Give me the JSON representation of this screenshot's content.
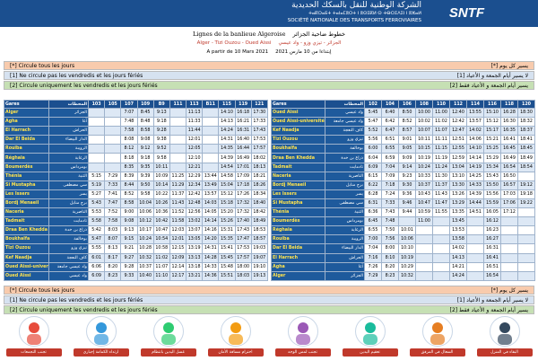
{
  "header": {
    "logo": "SNTF",
    "title_ar": "الشركة الوطنية للنقل بالسكك الحديدية",
    "title_tifinagh": "ⵜⴰⴽⵔⴰⴹⵜ ⵜⴰⵏⴰⵎⵓⵔⵜ ⵏ ⵓⵙⵉⴽⵍ ⵙ ⵜⴱⵔⵉⴷⵉⵏ ⵏ ⵓⵣⴰⵍ",
    "title_fr": "SOCIÉTÉ NATIONALE DES TRANSPORTS FERROVIAIRES"
  },
  "intro": {
    "line": "Lignes de la banlieue Algeroise",
    "line_ar": "خطوط ضاحية الجزائر",
    "route": "Alger - Tizi Ouzou - Oued Aissi",
    "route_ar": "الجزائر - تيزي وزو - واد عيسي",
    "date": "A partir de 10 Mars 2021",
    "date_ar": "إبتداءا من 10 مارس 2021"
  },
  "legend": [
    {
      "fr": "[*]  Circule tous les jours",
      "ar": "يسير كل يوم  [*]"
    },
    {
      "fr": "[1]  Ne circule pas les vendredis et les jours fériés",
      "ar": "لا يسير أيام الجمعة و الأعياد  [1]"
    },
    {
      "fr": "[2]  Circule uniquement les vendredis et les jours fériés",
      "ar": "يسير أيام الجمعة و الأعياد فقط  [2]"
    }
  ],
  "tables": [
    {
      "station_header": "Gares",
      "station_header_ar": "المحطات",
      "trains": [
        "103",
        "105",
        "107",
        "109",
        "B9",
        "111",
        "113",
        "B11",
        "115",
        "119",
        "121"
      ],
      "rows": [
        {
          "station": "Alger",
          "station_ar": "الجزائر",
          "times": [
            null,
            null,
            "7:07",
            "8:45",
            "9:13",
            null,
            "11:13",
            null,
            "14:10",
            "16:18",
            "17:30"
          ]
        },
        {
          "station": "Agha",
          "station_ar": "آغا",
          "times": [
            null,
            null,
            "7:48",
            "8:48",
            "9:18",
            null,
            "11:33",
            null,
            "14:13",
            "16:21",
            "17:33"
          ]
        },
        {
          "station": "El Harrach",
          "station_ar": "الحراش",
          "times": [
            null,
            null,
            "7:58",
            "8:58",
            "9:28",
            null,
            "11:44",
            null,
            "14:24",
            "16:31",
            "17:43"
          ]
        },
        {
          "station": "Dar El Beida",
          "station_ar": "الدار البيضاء",
          "times": [
            null,
            null,
            "8:08",
            "9:08",
            "9:38",
            null,
            "12:01",
            null,
            "14:31",
            "16:40",
            "17:53"
          ]
        },
        {
          "station": "Rouiba",
          "station_ar": "الرويبة",
          "times": [
            null,
            null,
            "8:12",
            "9:12",
            "9:52",
            null,
            "12:05",
            null,
            "14:35",
            "16:44",
            "17:57"
          ]
        },
        {
          "station": "Réghaia",
          "station_ar": "الرغاية",
          "times": [
            null,
            null,
            "8:18",
            "9:18",
            "9:58",
            null,
            "12:10",
            null,
            "14:39",
            "16:49",
            "18:02"
          ]
        },
        {
          "station": "Boumerdès",
          "station_ar": "بومرداس",
          "times": [
            null,
            null,
            "8:35",
            "9:35",
            "10:11",
            null,
            "12:21",
            null,
            "14:54",
            "17:01",
            "18:13"
          ]
        },
        {
          "station": "Thénia",
          "station_ar": "الثنية",
          "times": [
            "5:15",
            "7:29",
            "8:39",
            "9:39",
            "10:09",
            "11:25",
            "12:29",
            "13:44",
            "14:58",
            "17:09",
            "18:21"
          ]
        },
        {
          "station": "Si Mustapha",
          "station_ar": "سي مصطفى",
          "times": [
            "5:19",
            "7:33",
            "8:44",
            "9:50",
            "10:14",
            "11:29",
            "12:34",
            "13:49",
            "15:04",
            "17:18",
            "18:26"
          ]
        },
        {
          "station": "Les Issers",
          "station_ar": "يسر",
          "times": [
            "5:27",
            "7:41",
            "8:52",
            "9:58",
            "10:22",
            "11:37",
            "12:42",
            "13:57",
            "15:12",
            "17:26",
            "18:34"
          ]
        },
        {
          "station": "Bordj Menaeil",
          "station_ar": "برج منايل",
          "times": [
            "5:43",
            "7:47",
            "8:58",
            "10:04",
            "10:26",
            "11:43",
            "12:48",
            "14:03",
            "15:18",
            "17:32",
            "18:40"
          ]
        },
        {
          "station": "Naceria",
          "station_ar": "الناصرية",
          "times": [
            "5:53",
            "7:52",
            "9:00",
            "10:06",
            "10:36",
            "11:52",
            "12:56",
            "14:05",
            "15:20",
            "17:32",
            "18:42"
          ]
        },
        {
          "station": "Tadmait",
          "station_ar": "تادمايت",
          "times": [
            "5:58",
            "7:58",
            "9:08",
            "10:12",
            "10:42",
            "11:58",
            "13:02",
            "14:14",
            "15:26",
            "17:40",
            "18:49"
          ]
        },
        {
          "station": "Draa Ben Khedda",
          "station_ar": "ذراع بن خدة",
          "times": [
            "5:42",
            "8:03",
            "9:13",
            "10:17",
            "10:47",
            "12:03",
            "13:07",
            "14:16",
            "15:31",
            "17:43",
            "18:53"
          ]
        },
        {
          "station": "Boukhalfa",
          "station_ar": "بوخالفة",
          "times": [
            "5:47",
            "8:07",
            "9:15",
            "10:24",
            "10:54",
            "12:01",
            "13:05",
            "14:20",
            "15:35",
            "17:47",
            "18:57"
          ]
        },
        {
          "station": "Tizi Ouzou",
          "station_ar": "تيزي وزو",
          "times": [
            "5:55",
            "8:13",
            "9:21",
            "10:28",
            "10:58",
            "12:15",
            "13:19",
            "14:31",
            "15:41",
            "17:53",
            "19:03"
          ]
        },
        {
          "station": "Kef Naadja",
          "station_ar": "كاف النعجة",
          "times": [
            "6:01",
            "8:17",
            "9:27",
            "10:32",
            "11:02",
            "12:09",
            "13:13",
            "14:28",
            "15:45",
            "17:57",
            "19:07"
          ]
        },
        {
          "station": "Oued Aissi-université",
          "station_ar": "واد عيسي جامعة",
          "times": [
            "6:06",
            "8:20",
            "9:28",
            "10:37",
            "11:07",
            "12:14",
            "13:18",
            "14:33",
            "15:48",
            "18:00",
            "19:10"
          ]
        },
        {
          "station": "Oued Aissi",
          "station_ar": "واد عيسي",
          "times": [
            "6:09",
            "8:23",
            "9:33",
            "10:40",
            "11:10",
            "12:17",
            "13:21",
            "14:36",
            "15:51",
            "18:03",
            "19:13"
          ]
        }
      ]
    },
    {
      "station_header": "Gares",
      "station_header_ar": "المحطات",
      "trains": [
        "102",
        "104",
        "106",
        "108",
        "110",
        "112",
        "114",
        "116",
        "118",
        "120"
      ],
      "rows": [
        {
          "station": "Oued Aissi",
          "station_ar": "واد عيسي",
          "times": [
            "5:45",
            "6:40",
            "8:50",
            "10:00",
            "11:00",
            "12:40",
            "13:55",
            "15:10",
            "16:28",
            "18:30"
          ]
        },
        {
          "station": "Oued Aissi-université",
          "station_ar": "واد عيسي جامعة",
          "times": [
            "5:47",
            "6:42",
            "8:52",
            "10:02",
            "11:02",
            "12:42",
            "13:57",
            "15:12",
            "16:30",
            "18:32"
          ]
        },
        {
          "station": "Kef Naadja",
          "station_ar": "كاف النعجة",
          "times": [
            "5:52",
            "6:47",
            "8:57",
            "10:07",
            "11:07",
            "12:47",
            "14:02",
            "15:17",
            "16:35",
            "18:37"
          ]
        },
        {
          "station": "Tizi Ouzou",
          "station_ar": "تيزي وزو",
          "times": [
            "5:56",
            "6:51",
            "9:01",
            "10:11",
            "11:11",
            "12:51",
            "14:06",
            "15:21",
            "16:41",
            "18:41"
          ]
        },
        {
          "station": "Boukhalfa",
          "station_ar": "بوخالفة",
          "times": [
            "6:00",
            "6:55",
            "9:05",
            "10:15",
            "11:15",
            "12:55",
            "14:10",
            "15:25",
            "16:45",
            "18:45"
          ]
        },
        {
          "station": "Draa Ben Khedda",
          "station_ar": "ذراع بن خدة",
          "times": [
            "6:04",
            "6:59",
            "9:09",
            "10:19",
            "11:19",
            "12:59",
            "14:14",
            "15:29",
            "16:49",
            "18:49"
          ]
        },
        {
          "station": "Tadmait",
          "station_ar": "تادمايت",
          "times": [
            "6:09",
            "7:04",
            "9:14",
            "10:24",
            "11:24",
            "13:04",
            "14:19",
            "15:34",
            "16:54",
            "18:54"
          ]
        },
        {
          "station": "Naceria",
          "station_ar": "الناصرية",
          "times": [
            "6:15",
            "7:09",
            "9:23",
            "10:33",
            "11:30",
            "13:10",
            "14:25",
            "15:43",
            "16:50",
            null
          ]
        },
        {
          "station": "Bordj Menaeil",
          "station_ar": "برج منايل",
          "times": [
            "6:22",
            "7:18",
            "9:30",
            "10:37",
            "11:37",
            "13:30",
            "14:33",
            "15:50",
            "16:57",
            "19:12"
          ]
        },
        {
          "station": "Les Issers",
          "station_ar": "يسر",
          "times": [
            "6:28",
            "7:24",
            "9:36",
            "10:43",
            "11:43",
            "13:26",
            "14:39",
            "15:56",
            "17:03",
            "19:18"
          ]
        },
        {
          "station": "Si Mustapha",
          "station_ar": "سي مصطفى",
          "times": [
            "6:31",
            "7:33",
            "9:46",
            "10:47",
            "11:47",
            "13:29",
            "14:44",
            "15:59",
            "17:06",
            "19:22"
          ]
        },
        {
          "station": "Thénia",
          "station_ar": "الثنية",
          "times": [
            "6:36",
            "7:43",
            "9:44",
            "10:59",
            "11:55",
            "13:35",
            "14:51",
            "16:05",
            "17:12",
            null
          ]
        },
        {
          "station": "Boumerdès",
          "station_ar": "بومرداس",
          "times": [
            "6:45",
            "7:48",
            null,
            "11:00",
            null,
            "13:45",
            null,
            "16:12",
            null,
            null
          ]
        },
        {
          "station": "Réghaia",
          "station_ar": "الرغاية",
          "times": [
            "6:55",
            "7:50",
            "10:01",
            null,
            null,
            "13:53",
            null,
            "16:23",
            null,
            null
          ]
        },
        {
          "station": "Rouiba",
          "station_ar": "الرويبة",
          "times": [
            "7:00",
            "7:56",
            "10:06",
            null,
            null,
            "13:58",
            null,
            "16:27",
            null,
            null
          ]
        },
        {
          "station": "Dar El Beida",
          "station_ar": "الدار البيضاء",
          "times": [
            "7:04",
            "8:00",
            "10:10",
            null,
            null,
            "14:02",
            null,
            "16:31",
            null,
            null
          ]
        },
        {
          "station": "El Harrach",
          "station_ar": "الحراش",
          "times": [
            "7:16",
            "8:10",
            "10:19",
            null,
            null,
            "14:13",
            null,
            "16:41",
            null,
            null
          ]
        },
        {
          "station": "Agha",
          "station_ar": "آغا",
          "times": [
            "7:26",
            "8:20",
            "10:29",
            null,
            null,
            "14:21",
            null,
            "16:51",
            null,
            null
          ]
        },
        {
          "station": "Alger",
          "station_ar": "الجزائر",
          "times": [
            "7:29",
            "8:23",
            "10:32",
            null,
            null,
            "14:24",
            null,
            "16:54",
            null,
            null
          ]
        }
      ]
    }
  ],
  "advice": [
    "تجنب التجمعات",
    "ارتداء الكمامة إجباري",
    "غسل اليدين بانتظام",
    "احترام مسافة الأمان",
    "تجنب لمس الوجه",
    "تعقيم اليدين",
    "السعال في المرفق",
    "البقاء في المنزل"
  ]
}
